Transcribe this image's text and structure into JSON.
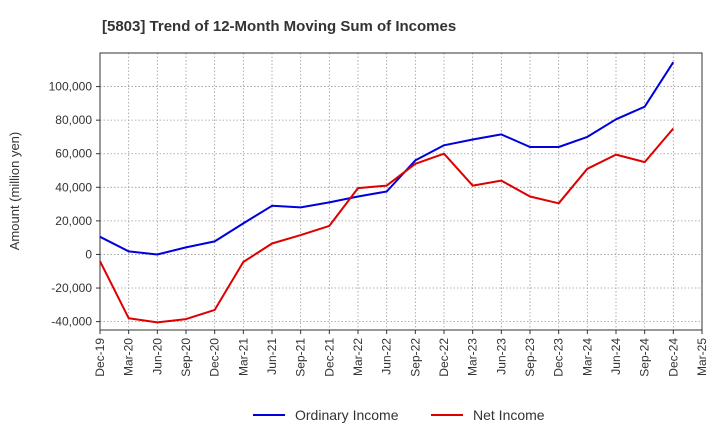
{
  "chart_data": {
    "type": "line",
    "title": "[5803]  Trend of 12-Month Moving Sum of Incomes",
    "xlabel": "",
    "ylabel": "Amount (million yen)",
    "ylim": [
      -45000,
      120000
    ],
    "yticks": [
      -40000,
      -20000,
      0,
      20000,
      40000,
      60000,
      80000,
      100000
    ],
    "ytick_labels": [
      "-40,000",
      "-20,000",
      "0",
      "20,000",
      "40,000",
      "60,000",
      "80,000",
      "100,000"
    ],
    "categories": [
      "Dec-19",
      "Mar-20",
      "Jun-20",
      "Sep-20",
      "Dec-20",
      "Mar-21",
      "Jun-21",
      "Sep-21",
      "Dec-21",
      "Mar-22",
      "Jun-22",
      "Sep-22",
      "Dec-22",
      "Mar-23",
      "Jun-23",
      "Sep-23",
      "Dec-23",
      "Mar-24",
      "Jun-24",
      "Sep-24",
      "Dec-24",
      "Mar-25"
    ],
    "grid": true,
    "legend_position": "bottom-center",
    "series": [
      {
        "name": "Ordinary Income",
        "color": "#0000dd",
        "values": [
          10500,
          1800,
          0,
          4200,
          7800,
          18500,
          29000,
          28000,
          31000,
          34500,
          37500,
          56000,
          65000,
          68500,
          71500,
          64000,
          64000,
          70000,
          80500,
          88000,
          114500,
          null
        ]
      },
      {
        "name": "Net Income",
        "color": "#dd0000",
        "values": [
          -4000,
          -38000,
          -40500,
          -38500,
          -33000,
          -4500,
          6500,
          11500,
          17000,
          39500,
          41000,
          54000,
          60000,
          41000,
          44000,
          34500,
          30500,
          51000,
          59500,
          55000,
          75000,
          null
        ]
      }
    ]
  }
}
